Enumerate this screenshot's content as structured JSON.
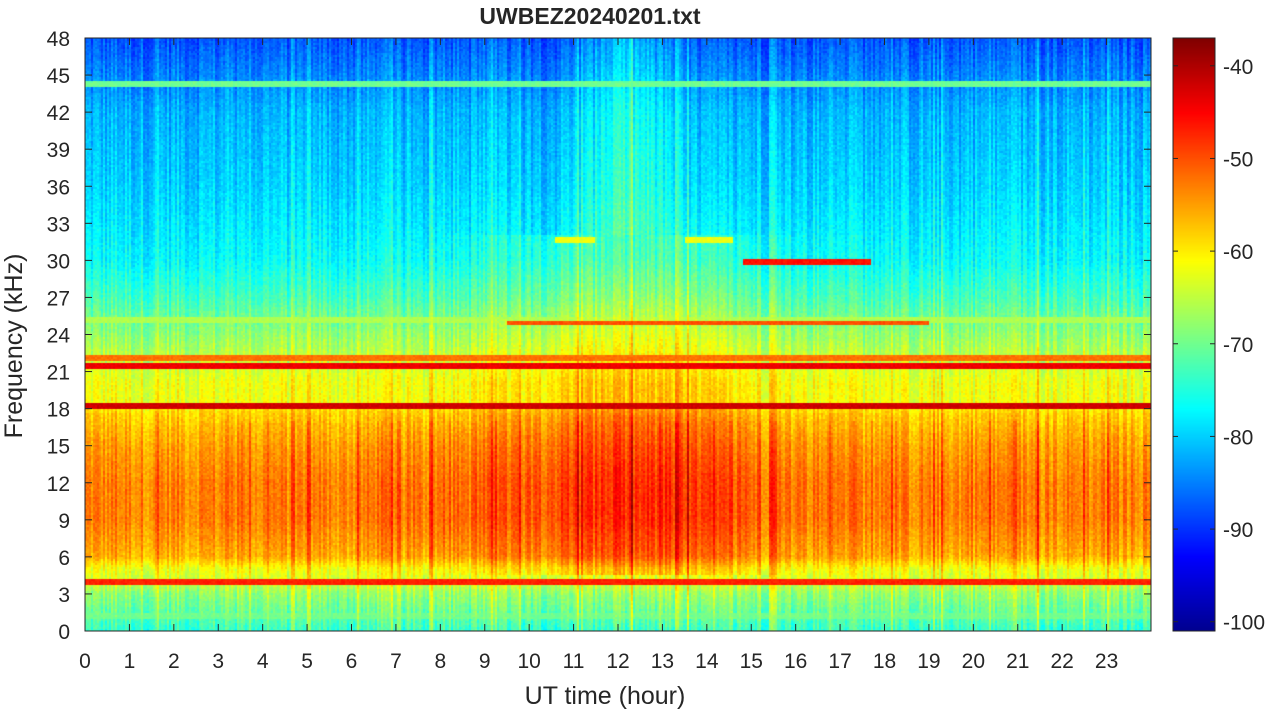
{
  "chart_data": {
    "type": "heatmap",
    "title": "UWBEZ20240201.txt",
    "xlabel": "UT time (hour)",
    "ylabel": "Frequency (kHz)",
    "xlim": [
      0,
      24
    ],
    "ylim": [
      0,
      48
    ],
    "x_ticks": [
      0,
      1,
      2,
      3,
      4,
      5,
      6,
      7,
      8,
      9,
      10,
      11,
      12,
      13,
      14,
      15,
      16,
      17,
      18,
      19,
      20,
      21,
      22,
      23
    ],
    "y_ticks": [
      0,
      3,
      6,
      9,
      12,
      15,
      18,
      21,
      24,
      27,
      30,
      33,
      36,
      39,
      42,
      45,
      48
    ],
    "colorbar": {
      "colormap": "jet",
      "clim": [
        -101,
        -37
      ],
      "ticks": [
        -100,
        -90,
        -80,
        -70,
        -60,
        -50,
        -40
      ]
    },
    "colormap_stops": [
      "#00008f",
      "#0000ff",
      "#0080ff",
      "#00ffff",
      "#80ff80",
      "#ffff00",
      "#ff8000",
      "#ff0000",
      "#800000"
    ],
    "background_profile": {
      "frequency_khz": [
        0,
        2,
        3,
        4,
        5,
        6,
        9,
        12,
        15,
        17.5,
        18.5,
        20,
        22,
        24,
        27,
        30,
        36,
        42,
        46,
        48
      ],
      "level_db": [
        -74,
        -70,
        -68,
        -64,
        -62,
        -56,
        -53,
        -53,
        -55,
        -58,
        -62,
        -62,
        -65,
        -68,
        -73,
        -77,
        -80,
        -82,
        -86,
        -88
      ]
    },
    "daytime_enhancement": {
      "center_hour": 12.2,
      "width_hours": 2.8,
      "peak_db": 5
    },
    "narrowband_lines": [
      {
        "frequency_khz": 4.0,
        "level_db": -47,
        "start_hour": 0,
        "end_hour": 24
      },
      {
        "frequency_khz": 18.2,
        "level_db": -42,
        "start_hour": 0,
        "end_hour": 24
      },
      {
        "frequency_khz": 21.4,
        "level_db": -44,
        "start_hour": 0,
        "end_hour": 24
      },
      {
        "frequency_khz": 22.1,
        "level_db": -52,
        "start_hour": 0,
        "end_hour": 24
      },
      {
        "frequency_khz": 24.9,
        "level_db": -50,
        "start_hour": 9.5,
        "end_hour": 19
      },
      {
        "frequency_khz": 25.1,
        "level_db": -66,
        "start_hour": 0,
        "end_hour": 24
      },
      {
        "frequency_khz": 29.8,
        "level_db": -46,
        "start_hour": 14.8,
        "end_hour": 17.7
      },
      {
        "frequency_khz": 31.6,
        "level_db": -62,
        "start_hour": 10.6,
        "end_hour": 11.5
      },
      {
        "frequency_khz": 31.6,
        "level_db": -62,
        "start_hour": 13.5,
        "end_hour": 14.6
      },
      {
        "frequency_khz": 44.2,
        "level_db": -70,
        "start_hour": 0,
        "end_hour": 24
      },
      {
        "frequency_khz": 1.2,
        "level_db": -70,
        "start_hour": 0,
        "end_hour": 24
      }
    ]
  }
}
